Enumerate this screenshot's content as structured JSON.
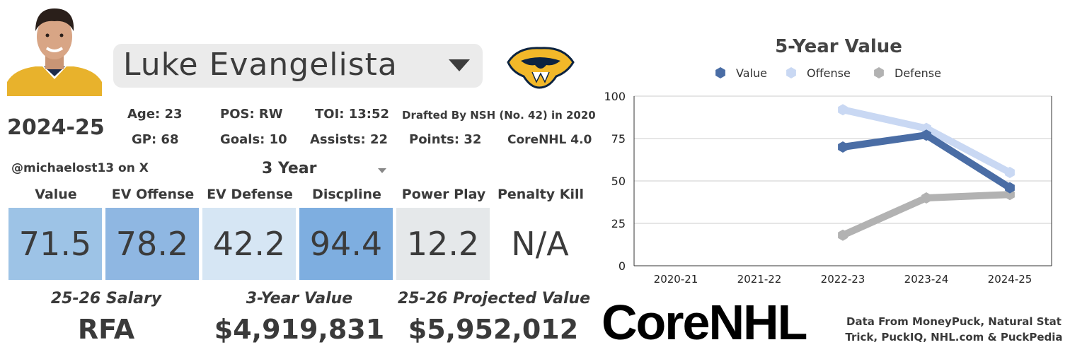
{
  "player": {
    "name": "Luke Evangelista",
    "season": "2024-25",
    "handle": "@michaelost13 on X"
  },
  "stats": [
    {
      "id": "age",
      "text": "Age: 23"
    },
    {
      "id": "pos",
      "text": "POS: RW"
    },
    {
      "id": "toi",
      "text": "TOI: 13:52"
    },
    {
      "id": "draft",
      "text": "Drafted By NSH (No. 42) in 2020"
    },
    {
      "id": "gp",
      "text": "GP: 68"
    },
    {
      "id": "goals",
      "text": "Goals: 10"
    },
    {
      "id": "assists",
      "text": "Assists: 22"
    },
    {
      "id": "points",
      "text": "Points: 32"
    },
    {
      "id": "version",
      "text": "CoreNHL 4.0"
    }
  ],
  "span_selector": {
    "value": "3 Year"
  },
  "categories": [
    {
      "label": "Value",
      "value": "71.5",
      "color": "#9dc3e6"
    },
    {
      "label": "EV Offense",
      "value": "78.2",
      "color": "#8fb7e2"
    },
    {
      "label": "EV Defense",
      "value": "42.2",
      "color": "#d6e6f4"
    },
    {
      "label": "Discpline",
      "value": "94.4",
      "color": "#7eaee0"
    },
    {
      "label": "Power Play",
      "value": "12.2",
      "color": "#e5e8ea"
    },
    {
      "label": "Penalty Kill",
      "value": "N/A",
      "color": "#ffffff"
    }
  ],
  "summary": [
    {
      "label": "25-26 Salary",
      "value": "RFA"
    },
    {
      "label": "3-Year Value",
      "value": "$4,919,831"
    },
    {
      "label": "25-26 Projected Value",
      "value": "$5,952,012"
    }
  ],
  "brand": {
    "logo_text": "CoreNHL"
  },
  "credits": "Data From MoneyPuck, Natural Stat Trick, PuckIQ, NHL.com & PuckPedia",
  "icons": [
    "player-photo",
    "predators-logo",
    "corenhl-logo",
    "chevron-down-icon"
  ],
  "chart_data": {
    "type": "line",
    "title": "5-Year Value",
    "xlabel": "",
    "ylabel": "",
    "categories": [
      "2020-21",
      "2021-22",
      "2022-23",
      "2023-24",
      "2024-25"
    ],
    "ylim": [
      0,
      100
    ],
    "yticks": [
      0,
      25,
      50,
      75,
      100
    ],
    "grid": true,
    "legend": "top",
    "series": [
      {
        "name": "Value",
        "color": "#4a6da5",
        "values": [
          null,
          null,
          70,
          77,
          46
        ]
      },
      {
        "name": "Offense",
        "color": "#c9d8f3",
        "values": [
          null,
          null,
          92,
          81,
          55
        ]
      },
      {
        "name": "Defense",
        "color": "#b2b2b2",
        "values": [
          null,
          null,
          18,
          40,
          42
        ]
      }
    ]
  }
}
